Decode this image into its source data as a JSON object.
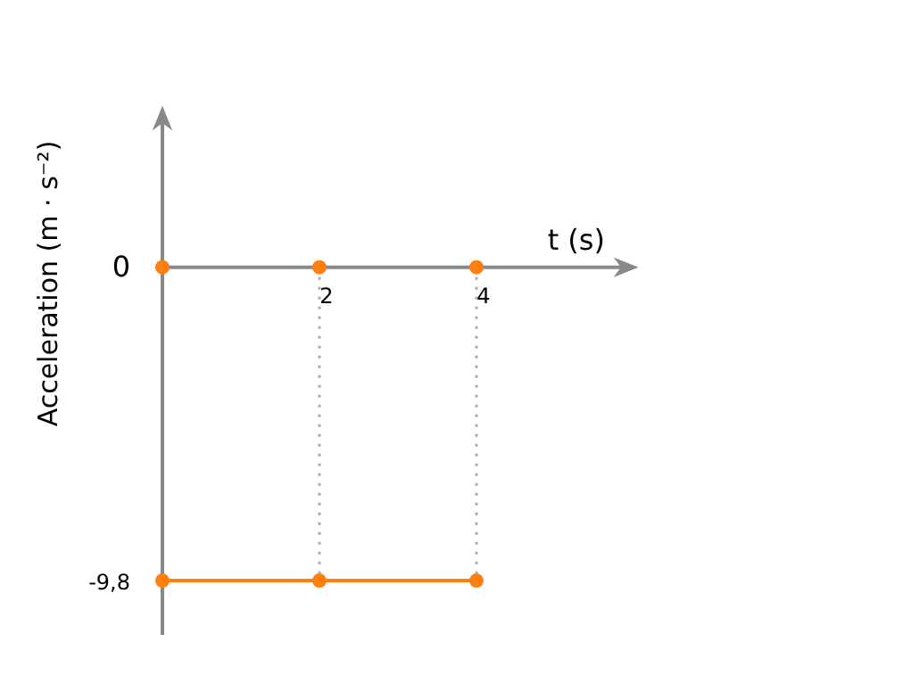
{
  "chart_data": {
    "type": "line",
    "xlabel": "t (s)",
    "ylabel": "Acceleration (m · s⁻²)",
    "x": [
      0,
      2,
      4
    ],
    "series": [
      {
        "color": "#ff7f0e",
        "values": [
          -9.8,
          -9.8,
          -9.8
        ],
        "marker": "circle"
      },
      {
        "type": "scatter",
        "color": "#ff7f0e",
        "values": [
          0,
          0,
          0
        ],
        "marker": "circle"
      }
    ],
    "xlim": [
      0,
      6
    ],
    "ylim": [
      -11.5,
      4.9
    ],
    "xticks": [
      2,
      4
    ],
    "yticks": [
      {
        "value": -9.8,
        "label": "-9,8"
      },
      0
    ],
    "ref_lines": [
      {
        "axis": "x",
        "value": 2,
        "color": "#aaaaaa",
        "line_style": "dotted"
      },
      {
        "axis": "x",
        "value": 4,
        "color": "#aaaaaa",
        "line_style": "dotted"
      }
    ],
    "grid": false
  }
}
